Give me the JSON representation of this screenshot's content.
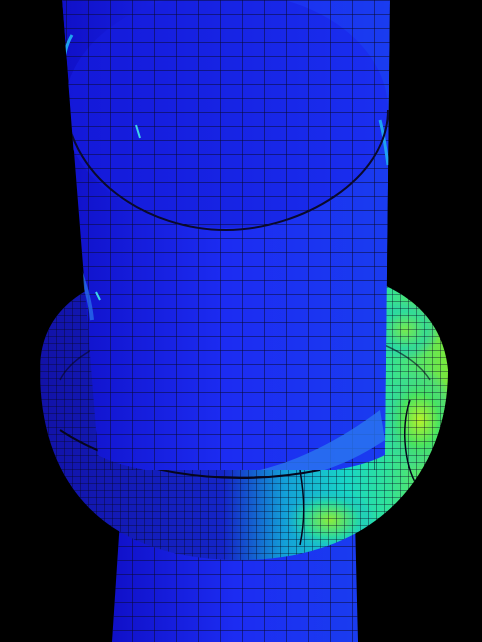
{
  "scene": {
    "background_color": "#000000",
    "mesh_line_color": "#0b0b2a",
    "contour_colors": {
      "deep_blue": "#1313d6",
      "blue": "#1e3cf0",
      "azure": "#1f74f2",
      "cyan": "#16c9e6",
      "aqua_green": "#20e6b0",
      "green": "#39e64a",
      "yellow_green": "#a2f02a"
    },
    "objects": [
      "upper-pipe",
      "collar-ring",
      "lower-pipe"
    ]
  }
}
